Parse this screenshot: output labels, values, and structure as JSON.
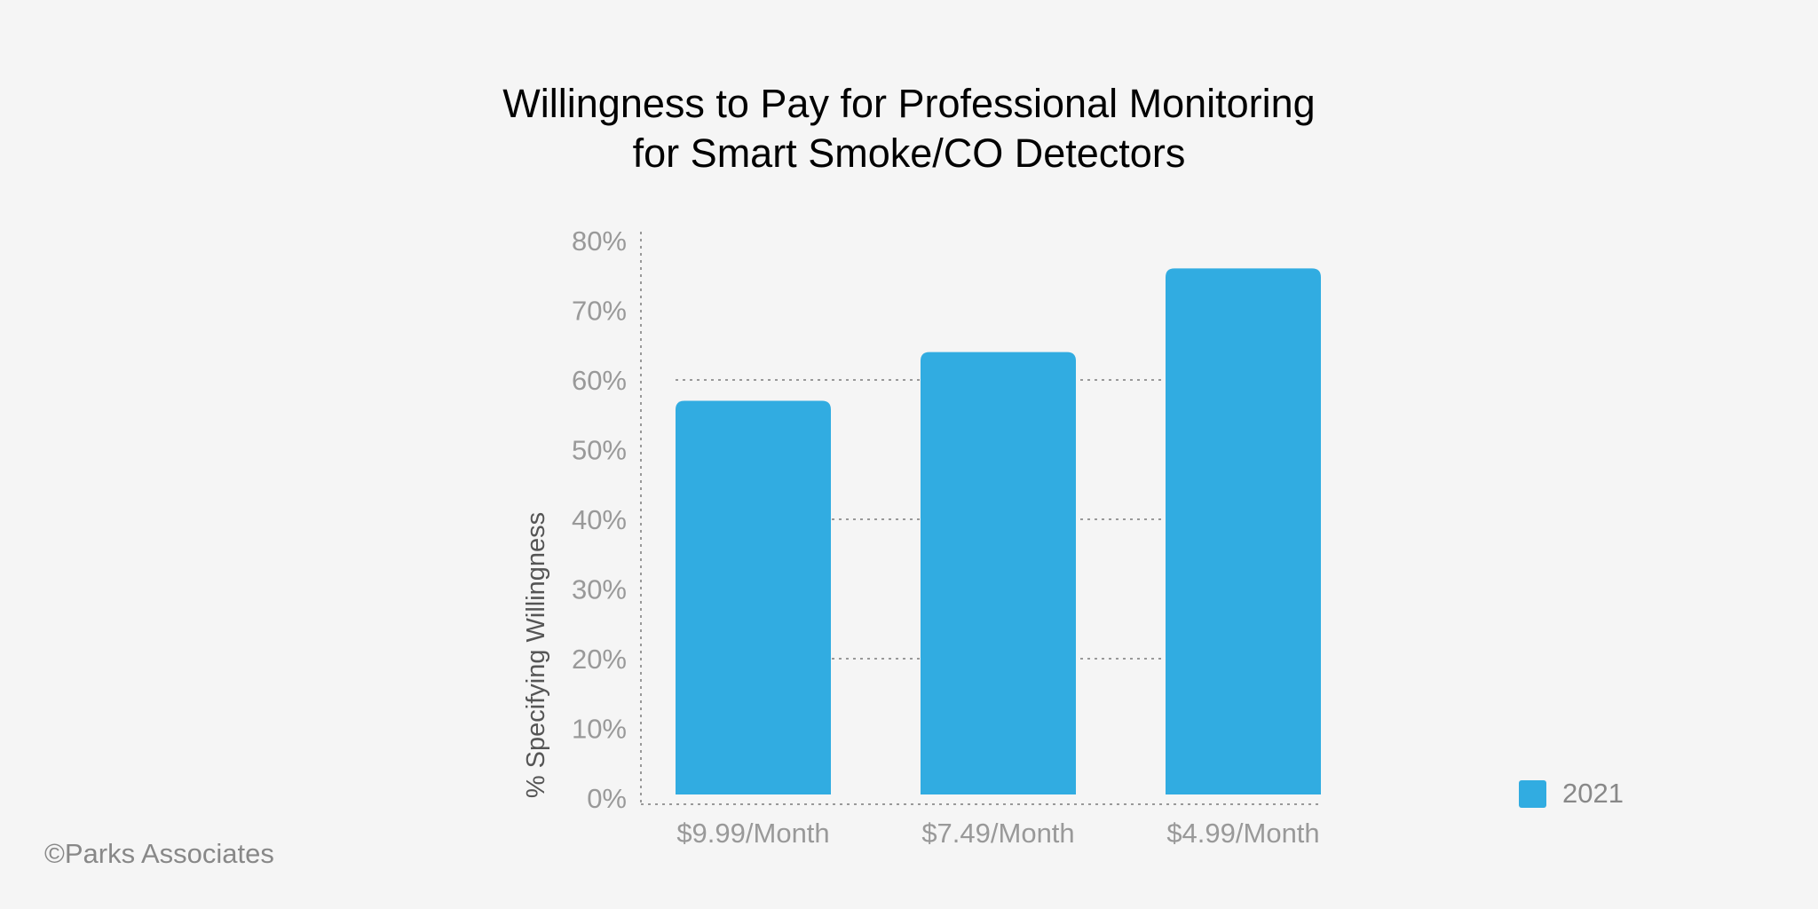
{
  "chart_data": {
    "type": "bar",
    "title_lines": [
      "Willingness to Pay for Professional Monitoring",
      "for Smart Smoke/CO Detectors"
    ],
    "categories": [
      "$9.99/Month",
      "$7.49/Month",
      "$4.99/Month"
    ],
    "series": [
      {
        "name": "2021",
        "values": [
          57,
          64,
          76
        ],
        "color": "#31ace1"
      }
    ],
    "xlabel": "",
    "ylabel": "% Specifying Willingness",
    "ylim": [
      0,
      80
    ],
    "yticks": [
      "0%",
      "10%",
      "20%",
      "30%",
      "40%",
      "50%",
      "60%",
      "70%",
      "80%"
    ],
    "gridlines": [
      20,
      40,
      60
    ],
    "grid": "dotted horizontal",
    "legend_position": "bottom-right"
  },
  "footer": {
    "copyright": "©Parks Associates"
  }
}
